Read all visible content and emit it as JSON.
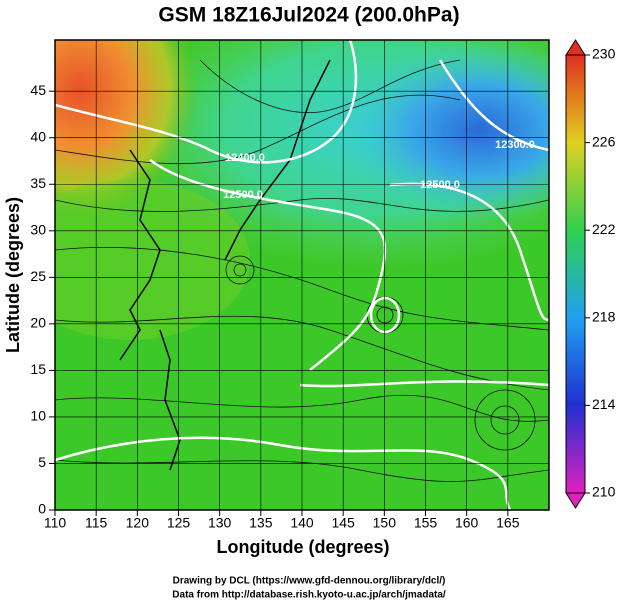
{
  "chart_data": {
    "type": "map",
    "title": "GSM 18Z16Jul2024 (200.0hPa)",
    "xlabel": "Longitude (degrees)",
    "ylabel": "Latitude  (degrees)",
    "xlim": [
      110,
      170
    ],
    "xticks": [
      110,
      115,
      120,
      125,
      130,
      135,
      140,
      145,
      150,
      155,
      160,
      165
    ],
    "ylim": [
      0,
      50.5
    ],
    "yticks": [
      0,
      5,
      10,
      15,
      20,
      25,
      30,
      35,
      40,
      45
    ],
    "grid": true,
    "colorbar": {
      "lim": [
        210,
        230
      ],
      "ticks": [
        210,
        214,
        218,
        222,
        226,
        230
      ],
      "colors": [
        "#e020c0",
        "#2030d0",
        "#20a0f0",
        "#30d050",
        "#e0d020",
        "#e03020"
      ]
    },
    "contour_labels": [
      "12400.0",
      "12500.0",
      "12300.0",
      "12500.0"
    ]
  },
  "footer": [
    "Drawing by DCL (https://www.gfd-dennou.org/library/dcl/)",
    "Data from http://database.rish.kyoto-u.ac.jp/arch/jmadata/"
  ]
}
